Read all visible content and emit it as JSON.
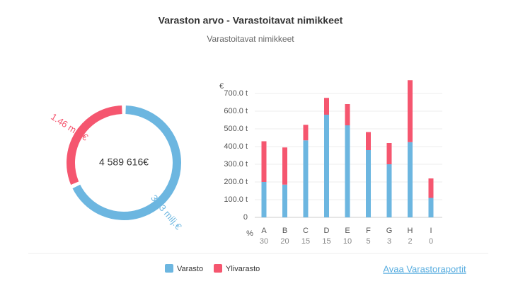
{
  "title": "Varaston arvo - Varastoitavat nimikkeet",
  "subtitle": "Varastoitavat nimikkeet",
  "link": "Avaa Varastoraportit",
  "chart_data": [
    {
      "type": "donut",
      "center_label": "4 589 616€",
      "categories": [
        "Varasto",
        "Ylivarasto"
      ],
      "values": [
        3.13,
        1.46
      ],
      "value_labels": [
        "3.13 milj.€",
        "1.46 milj.€"
      ],
      "colors": [
        "#6cb6e0",
        "#f5566f"
      ]
    },
    {
      "type": "stacked_bar",
      "y_label": "€",
      "x_sub_label": "%",
      "categories": [
        "A",
        "B",
        "C",
        "D",
        "E",
        "F",
        "G",
        "H",
        "I"
      ],
      "sub_categories": [
        30,
        20,
        15,
        15,
        10,
        5,
        3,
        2,
        0
      ],
      "series": [
        {
          "name": "Varasto",
          "color": "#6cb6e0",
          "values": [
            200,
            185,
            435,
            580,
            520,
            380,
            300,
            425,
            110
          ]
        },
        {
          "name": "Ylivarasto",
          "color": "#f5566f",
          "values": [
            230,
            210,
            88,
            95,
            120,
            102,
            120,
            350,
            110
          ]
        }
      ],
      "ylim": [
        0,
        780
      ],
      "yticks": [
        0,
        {
          "value": 100,
          "label": "100.0 t"
        },
        {
          "value": 200,
          "label": "200.0 t"
        },
        {
          "value": 300,
          "label": "300.0 t"
        },
        {
          "value": 400,
          "label": "400.0 t"
        },
        {
          "value": 500,
          "label": "500.0 t"
        },
        {
          "value": 600,
          "label": "600.0 t"
        },
        {
          "value": 700,
          "label": "700.0 t"
        }
      ],
      "grid": true
    }
  ]
}
